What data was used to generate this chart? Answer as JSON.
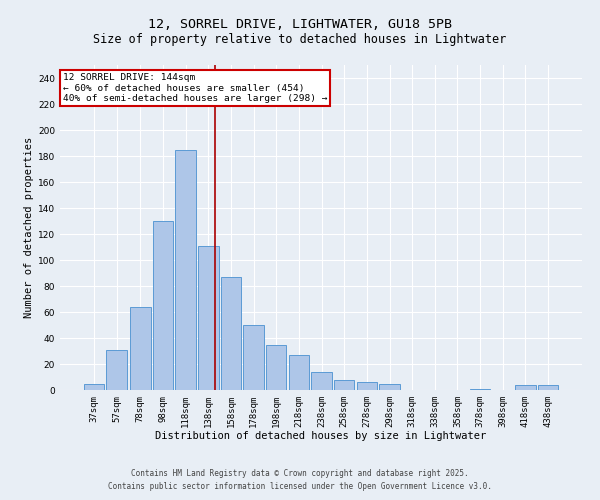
{
  "title1": "12, SORREL DRIVE, LIGHTWATER, GU18 5PB",
  "title2": "Size of property relative to detached houses in Lightwater",
  "xlabel": "Distribution of detached houses by size in Lightwater",
  "ylabel": "Number of detached properties",
  "bar_labels": [
    "37sqm",
    "57sqm",
    "78sqm",
    "98sqm",
    "118sqm",
    "138sqm",
    "158sqm",
    "178sqm",
    "198sqm",
    "218sqm",
    "238sqm",
    "258sqm",
    "278sqm",
    "298sqm",
    "318sqm",
    "338sqm",
    "358sqm",
    "378sqm",
    "398sqm",
    "418sqm",
    "438sqm"
  ],
  "bar_values": [
    5,
    31,
    64,
    130,
    185,
    111,
    87,
    50,
    35,
    27,
    14,
    8,
    6,
    5,
    0,
    0,
    0,
    1,
    0,
    4,
    4
  ],
  "bar_color": "#aec6e8",
  "bar_edge_color": "#5b9bd5",
  "background_color": "#e8eef5",
  "grid_color": "#ffffff",
  "red_line_x": 144,
  "annotation_text": "12 SORREL DRIVE: 144sqm\n← 60% of detached houses are smaller (454)\n40% of semi-detached houses are larger (298) →",
  "annotation_box_color": "#ffffff",
  "annotation_edge_color": "#cc0000",
  "ylim": [
    0,
    250
  ],
  "yticks": [
    0,
    20,
    40,
    60,
    80,
    100,
    120,
    140,
    160,
    180,
    200,
    220,
    240
  ],
  "footer1": "Contains HM Land Registry data © Crown copyright and database right 2025.",
  "footer2": "Contains public sector information licensed under the Open Government Licence v3.0.",
  "title1_fontsize": 9.5,
  "title2_fontsize": 8.5,
  "xlabel_fontsize": 7.5,
  "ylabel_fontsize": 7.5,
  "tick_fontsize": 6.5,
  "annotation_fontsize": 6.8,
  "footer_fontsize": 5.5
}
